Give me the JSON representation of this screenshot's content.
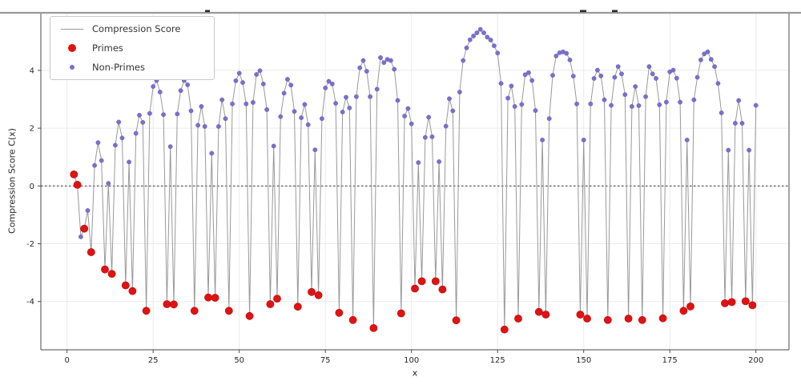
{
  "figure": {
    "xlabel": "x",
    "ylabel": "Compression Score C(x)"
  },
  "legend": {
    "items": [
      {
        "label": "Compression Score",
        "type": "line",
        "color": "#999999"
      },
      {
        "label": "Primes",
        "type": "dot-large",
        "color": "#e01212"
      },
      {
        "label": "Non-Primes",
        "type": "dot-small",
        "color": "#7a70cb"
      }
    ]
  },
  "axes": {
    "xticks": [
      0,
      25,
      50,
      75,
      100,
      125,
      150,
      175,
      200
    ],
    "yticks": [
      -4,
      -2,
      0,
      2,
      4
    ],
    "xlim": [
      -7.6,
      209.6
    ],
    "ylim": [
      -5.67,
      6.02
    ],
    "grid": true,
    "zero_line": 0
  },
  "colors": {
    "line": "#999999",
    "prime_marker": "#e01212",
    "prime_edge": "#b50d0d",
    "nonprime_marker": "#7a70cb",
    "nonprime_edge": "#5f55b2",
    "grid": "#ebebeb",
    "spine": "#4a4a4a",
    "top_rule": "#9a9a9a",
    "tick_text": "#262626",
    "zero_dash": "#1a1a1a"
  },
  "chart_data": {
    "type": "line",
    "xlabel": "x",
    "ylabel": "Compression Score C(x)",
    "legend_position": "upper-left",
    "series": [
      {
        "name": "Compression Score",
        "style": "gray line through all points"
      },
      {
        "name": "Primes",
        "style": "large red dots at prime x"
      },
      {
        "name": "Non-Primes",
        "style": "small purple dots at composite x"
      }
    ],
    "points_format": [
      "x",
      "C(x)",
      "is_prime"
    ],
    "points": [
      [
        2,
        0.4,
        1
      ],
      [
        3,
        0.04,
        1
      ],
      [
        4,
        -1.76,
        0
      ],
      [
        5,
        -1.48,
        1
      ],
      [
        6,
        -0.85,
        0
      ],
      [
        7,
        -2.29,
        1
      ],
      [
        8,
        0.71,
        0
      ],
      [
        9,
        1.5,
        0
      ],
      [
        10,
        0.88,
        0
      ],
      [
        11,
        -2.89,
        1
      ],
      [
        12,
        0.09,
        0
      ],
      [
        13,
        -3.04,
        1
      ],
      [
        14,
        1.41,
        0
      ],
      [
        15,
        2.21,
        0
      ],
      [
        16,
        1.66,
        0
      ],
      [
        17,
        -3.44,
        1
      ],
      [
        18,
        0.83,
        0
      ],
      [
        19,
        -3.64,
        1
      ],
      [
        20,
        1.82,
        0
      ],
      [
        21,
        2.45,
        0
      ],
      [
        22,
        2.2,
        0
      ],
      [
        23,
        -4.32,
        1
      ],
      [
        24,
        2.51,
        0
      ],
      [
        25,
        3.44,
        0
      ],
      [
        26,
        3.65,
        0
      ],
      [
        27,
        3.25,
        0
      ],
      [
        28,
        2.47,
        0
      ],
      [
        29,
        -4.09,
        1
      ],
      [
        30,
        1.36,
        0
      ],
      [
        31,
        -4.1,
        1
      ],
      [
        32,
        2.49,
        0
      ],
      [
        33,
        3.3,
        0
      ],
      [
        34,
        3.65,
        0
      ],
      [
        35,
        3.5,
        0
      ],
      [
        36,
        2.6,
        0
      ],
      [
        37,
        -4.32,
        1
      ],
      [
        38,
        2.1,
        0
      ],
      [
        39,
        2.75,
        0
      ],
      [
        40,
        2.06,
        0
      ],
      [
        41,
        -3.86,
        1
      ],
      [
        42,
        1.13,
        0
      ],
      [
        43,
        -3.87,
        1
      ],
      [
        44,
        2.06,
        0
      ],
      [
        45,
        2.98,
        0
      ],
      [
        46,
        2.33,
        0
      ],
      [
        47,
        -4.32,
        1
      ],
      [
        48,
        2.84,
        0
      ],
      [
        49,
        3.64,
        0
      ],
      [
        50,
        3.9,
        0
      ],
      [
        51,
        3.58,
        0
      ],
      [
        52,
        2.84,
        0
      ],
      [
        53,
        -4.5,
        1
      ],
      [
        54,
        2.89,
        0
      ],
      [
        55,
        3.86,
        0
      ],
      [
        56,
        3.99,
        0
      ],
      [
        57,
        3.53,
        0
      ],
      [
        58,
        2.64,
        0
      ],
      [
        59,
        -4.09,
        1
      ],
      [
        60,
        1.38,
        0
      ],
      [
        61,
        -3.9,
        1
      ],
      [
        62,
        2.4,
        0
      ],
      [
        63,
        3.21,
        0
      ],
      [
        64,
        3.69,
        0
      ],
      [
        65,
        3.49,
        0
      ],
      [
        66,
        2.58,
        0
      ],
      [
        67,
        -4.18,
        1
      ],
      [
        68,
        2.36,
        0
      ],
      [
        69,
        2.82,
        0
      ],
      [
        70,
        2.12,
        0
      ],
      [
        71,
        -3.67,
        1
      ],
      [
        72,
        1.25,
        0
      ],
      [
        73,
        -3.78,
        1
      ],
      [
        74,
        2.33,
        0
      ],
      [
        75,
        3.39,
        0
      ],
      [
        76,
        3.62,
        0
      ],
      [
        77,
        3.53,
        0
      ],
      [
        78,
        2.86,
        0
      ],
      [
        79,
        -4.39,
        1
      ],
      [
        80,
        2.56,
        0
      ],
      [
        81,
        3.07,
        0
      ],
      [
        82,
        2.7,
        0
      ],
      [
        83,
        -4.64,
        1
      ],
      [
        84,
        3.09,
        0
      ],
      [
        85,
        4.09,
        0
      ],
      [
        86,
        4.34,
        0
      ],
      [
        87,
        3.97,
        0
      ],
      [
        88,
        3.09,
        0
      ],
      [
        89,
        -4.92,
        1
      ],
      [
        90,
        3.35,
        0
      ],
      [
        91,
        4.44,
        0
      ],
      [
        92,
        4.27,
        0
      ],
      [
        93,
        4.38,
        0
      ],
      [
        94,
        4.34,
        0
      ],
      [
        95,
        4.04,
        0
      ],
      [
        96,
        2.96,
        0
      ],
      [
        97,
        -4.41,
        1
      ],
      [
        98,
        2.42,
        0
      ],
      [
        99,
        2.68,
        0
      ],
      [
        100,
        2.15,
        0
      ],
      [
        101,
        -3.55,
        1
      ],
      [
        102,
        0.81,
        0
      ],
      [
        103,
        -3.3,
        1
      ],
      [
        104,
        1.68,
        0
      ],
      [
        105,
        2.38,
        0
      ],
      [
        106,
        1.7,
        0
      ],
      [
        107,
        -3.3,
        1
      ],
      [
        108,
        0.84,
        0
      ],
      [
        109,
        -3.58,
        1
      ],
      [
        110,
        2.07,
        0
      ],
      [
        111,
        3.02,
        0
      ],
      [
        112,
        2.6,
        0
      ],
      [
        113,
        -4.65,
        1
      ],
      [
        114,
        3.25,
        0
      ],
      [
        115,
        4.34,
        0
      ],
      [
        116,
        4.78,
        0
      ],
      [
        117,
        5.06,
        0
      ],
      [
        118,
        5.19,
        0
      ],
      [
        119,
        5.3,
        0
      ],
      [
        120,
        5.42,
        0
      ],
      [
        121,
        5.3,
        0
      ],
      [
        122,
        5.15,
        0
      ],
      [
        123,
        5.05,
        0
      ],
      [
        124,
        4.85,
        0
      ],
      [
        125,
        4.6,
        0
      ],
      [
        126,
        3.55,
        0
      ],
      [
        127,
        -4.97,
        1
      ],
      [
        128,
        3.04,
        0
      ],
      [
        129,
        3.46,
        0
      ],
      [
        130,
        2.75,
        0
      ],
      [
        131,
        -4.59,
        1
      ],
      [
        132,
        2.82,
        0
      ],
      [
        133,
        3.85,
        0
      ],
      [
        134,
        3.92,
        0
      ],
      [
        135,
        3.65,
        0
      ],
      [
        136,
        2.61,
        0
      ],
      [
        137,
        -4.36,
        1
      ],
      [
        138,
        1.59,
        0
      ],
      [
        139,
        -4.45,
        1
      ],
      [
        140,
        2.33,
        0
      ],
      [
        141,
        3.83,
        0
      ],
      [
        142,
        4.5,
        0
      ],
      [
        143,
        4.61,
        0
      ],
      [
        144,
        4.64,
        0
      ],
      [
        145,
        4.59,
        0
      ],
      [
        146,
        4.36,
        0
      ],
      [
        147,
        3.8,
        0
      ],
      [
        148,
        2.84,
        0
      ],
      [
        149,
        -4.45,
        1
      ],
      [
        150,
        1.59,
        0
      ],
      [
        151,
        -4.59,
        1
      ],
      [
        152,
        2.84,
        0
      ],
      [
        153,
        3.72,
        0
      ],
      [
        154,
        4.01,
        0
      ],
      [
        155,
        3.81,
        0
      ],
      [
        156,
        2.98,
        0
      ],
      [
        157,
        -4.64,
        1
      ],
      [
        158,
        2.79,
        0
      ],
      [
        159,
        3.76,
        0
      ],
      [
        160,
        4.13,
        0
      ],
      [
        161,
        3.88,
        0
      ],
      [
        162,
        3.16,
        0
      ],
      [
        163,
        -4.59,
        1
      ],
      [
        164,
        2.75,
        0
      ],
      [
        165,
        3.44,
        0
      ],
      [
        166,
        2.78,
        0
      ],
      [
        167,
        -4.64,
        1
      ],
      [
        168,
        3.09,
        0
      ],
      [
        169,
        4.13,
        0
      ],
      [
        170,
        3.88,
        0
      ],
      [
        171,
        3.72,
        0
      ],
      [
        172,
        2.81,
        0
      ],
      [
        173,
        -4.58,
        1
      ],
      [
        174,
        2.9,
        0
      ],
      [
        175,
        3.95,
        0
      ],
      [
        176,
        4.01,
        0
      ],
      [
        177,
        3.73,
        0
      ],
      [
        178,
        2.9,
        0
      ],
      [
        179,
        -4.32,
        1
      ],
      [
        180,
        1.59,
        0
      ],
      [
        181,
        -4.17,
        1
      ],
      [
        182,
        2.98,
        0
      ],
      [
        183,
        3.76,
        0
      ],
      [
        184,
        4.36,
        0
      ],
      [
        185,
        4.57,
        0
      ],
      [
        186,
        4.64,
        0
      ],
      [
        187,
        4.38,
        0
      ],
      [
        188,
        4.13,
        0
      ],
      [
        189,
        3.55,
        0
      ],
      [
        190,
        2.53,
        0
      ],
      [
        191,
        -4.06,
        1
      ],
      [
        192,
        1.24,
        0
      ],
      [
        193,
        -4.02,
        1
      ],
      [
        194,
        2.17,
        0
      ],
      [
        195,
        2.96,
        0
      ],
      [
        196,
        2.17,
        0
      ],
      [
        197,
        -3.99,
        1
      ],
      [
        198,
        1.24,
        0
      ],
      [
        199,
        -4.13,
        1
      ],
      [
        200,
        2.79,
        0
      ]
    ]
  }
}
